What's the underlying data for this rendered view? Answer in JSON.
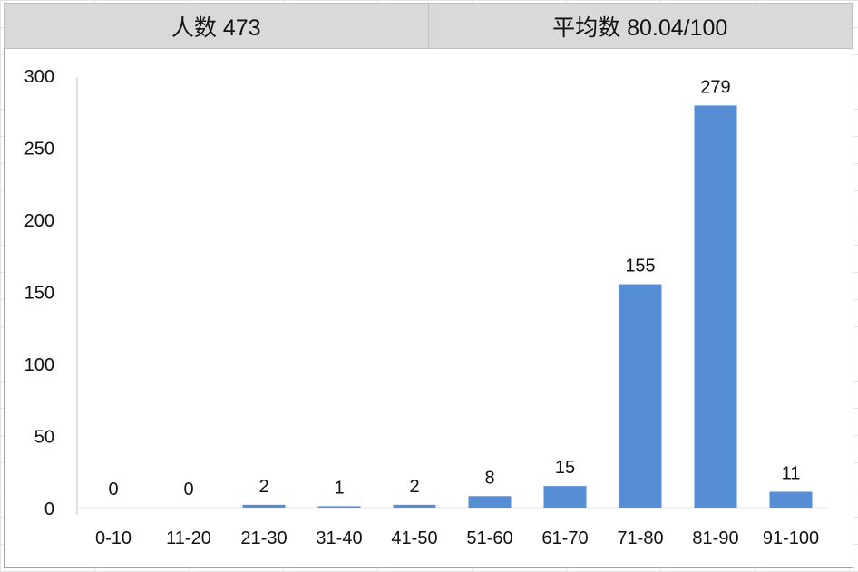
{
  "header": {
    "count_label": "人数 473",
    "average_label": "平均数 80.04/100"
  },
  "chart_data": {
    "type": "bar",
    "categories": [
      "0-10",
      "11-20",
      "21-30",
      "31-40",
      "41-50",
      "51-60",
      "61-70",
      "71-80",
      "81-90",
      "91-100"
    ],
    "values": [
      0,
      0,
      2,
      1,
      2,
      8,
      15,
      155,
      279,
      11
    ],
    "ylim": [
      0,
      300
    ],
    "yticks": [
      0,
      50,
      100,
      150,
      200,
      250,
      300
    ],
    "grid": false,
    "data_labels": true,
    "bar_color": "#558ed5"
  }
}
